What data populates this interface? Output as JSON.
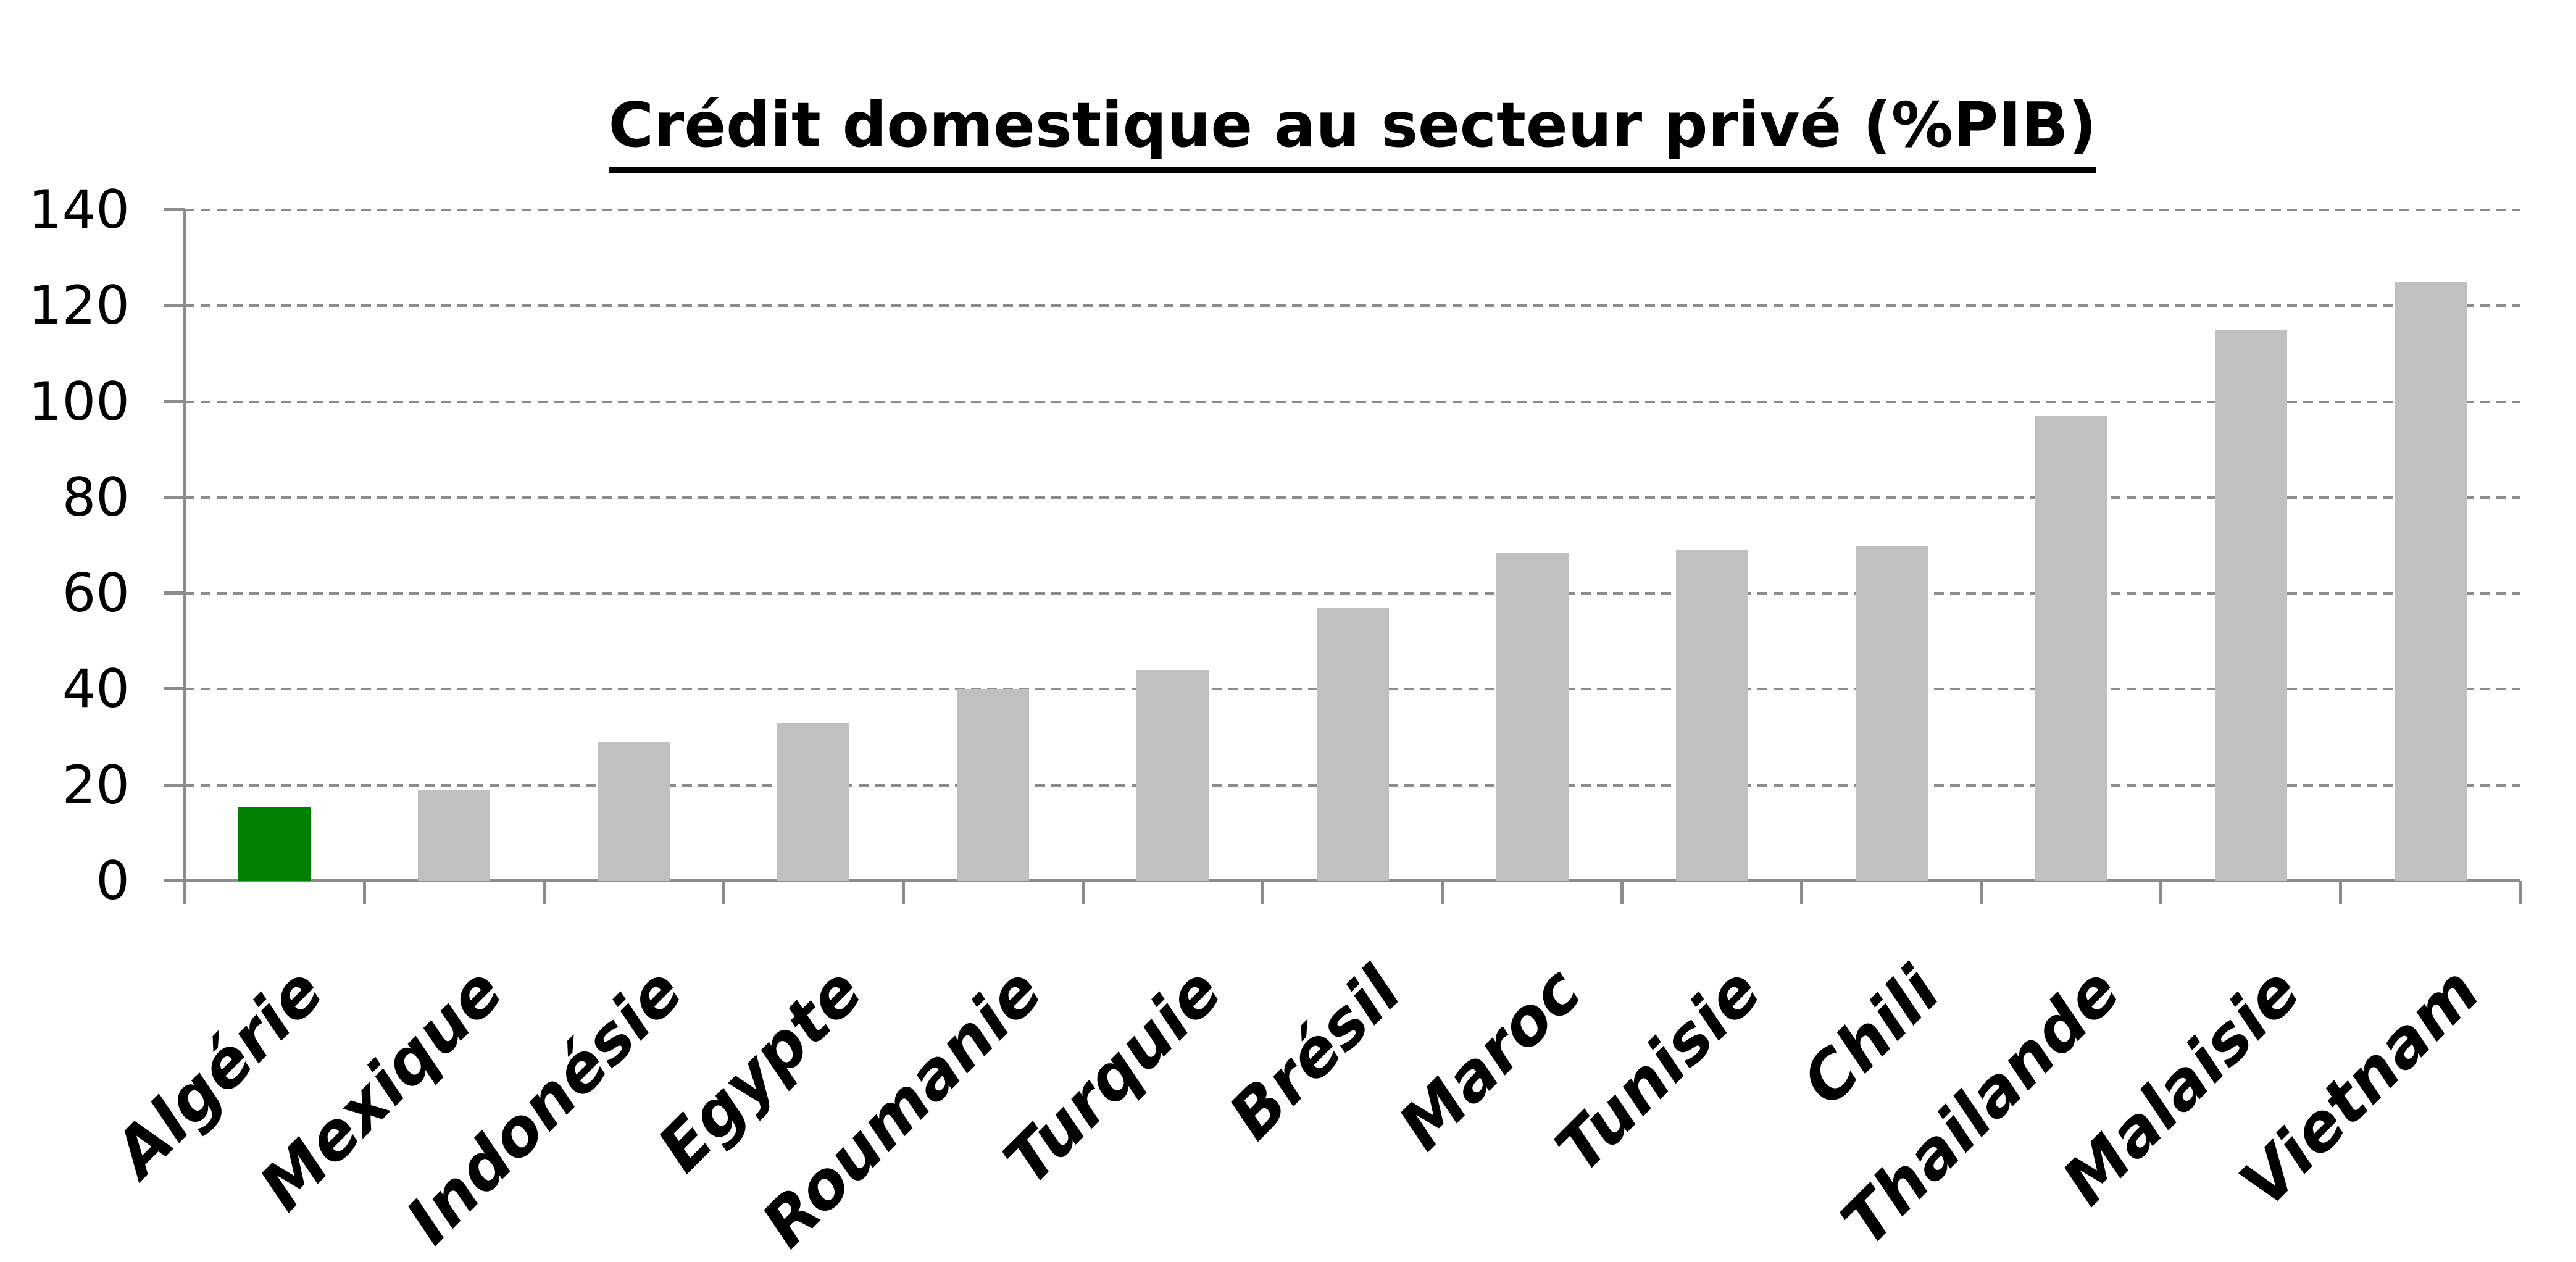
{
  "chart_data": {
    "type": "bar",
    "title": "Crédit domestique au secteur privé (%PIB)",
    "categories": [
      "Algérie",
      "Mexique",
      "Indonésie",
      "Egypte",
      "Roumanie",
      "Turquie",
      "Brésil",
      "Maroc",
      "Tunisie",
      "Chili",
      "Thailande",
      "Malaisie",
      "Vietnam"
    ],
    "values": [
      15.5,
      19,
      29,
      33,
      40,
      44,
      57,
      68.5,
      69,
      70,
      97,
      115,
      125
    ],
    "xlabel": "",
    "ylabel": "",
    "ylim": [
      0,
      140
    ],
    "yticks": [
      0,
      20,
      40,
      60,
      80,
      100,
      120,
      140
    ],
    "grid": "horizontal-dashed",
    "legend": "none",
    "highlight_index": 0,
    "highlight_color": "#008000",
    "bar_color": "#C0C0C0",
    "axis_color": "#8C8C8C",
    "grid_color": "#8C8C8C"
  }
}
